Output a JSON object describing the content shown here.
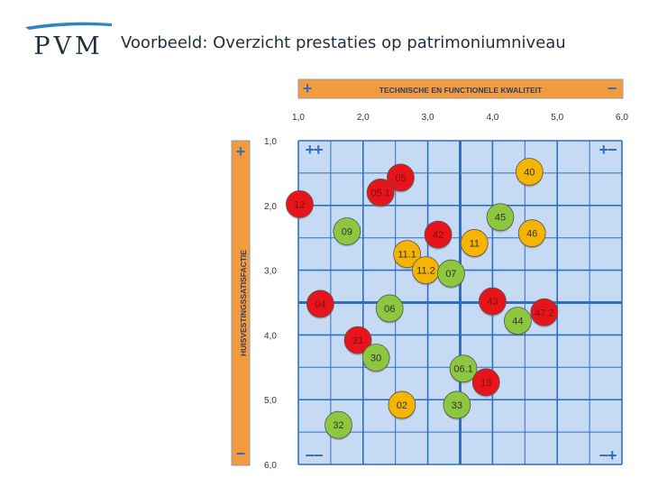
{
  "slide": {
    "title": "Voorbeeld: Overzicht prestaties op patrimoniumniveau",
    "logo_text": "PVM"
  },
  "chart_data": {
    "type": "scatter",
    "x_axis": {
      "title": "TECHNISCHE EN FUNCTIONELE KWALITEIT",
      "range": [
        1.0,
        6.0
      ],
      "ticks": [
        "1,0",
        "2,0",
        "3,0",
        "4,0",
        "5,0",
        "6,0"
      ],
      "ends": [
        "+",
        "−"
      ]
    },
    "y_axis": {
      "title": "HUISVESTINGSSATISFACTIE",
      "range": [
        1.0,
        6.0
      ],
      "ticks": [
        "1,0",
        "2,0",
        "3,0",
        "4,0",
        "5,0",
        "6,0"
      ],
      "ends": [
        "+",
        "−"
      ]
    },
    "quadrant_labels": [
      "++",
      "+−",
      "−−",
      "−+"
    ],
    "colors": {
      "red": "#e8141b",
      "orange": "#f5b400",
      "green": "#8dc63f",
      "plot_bg": "#c6dbf3",
      "grid": "#2f6fc0",
      "band": "#f19a3e"
    },
    "points": [
      {
        "label": "05",
        "x": 2.58,
        "y": 1.57,
        "color": "red"
      },
      {
        "label": "40",
        "x": 4.57,
        "y": 1.48,
        "color": "orange"
      },
      {
        "label": "05.1",
        "x": 2.27,
        "y": 1.8,
        "color": "red"
      },
      {
        "label": "12",
        "x": 1.02,
        "y": 1.98,
        "color": "red"
      },
      {
        "label": "45",
        "x": 4.12,
        "y": 2.18,
        "color": "green"
      },
      {
        "label": "09",
        "x": 1.75,
        "y": 2.4,
        "color": "green"
      },
      {
        "label": "42",
        "x": 3.16,
        "y": 2.45,
        "color": "red"
      },
      {
        "label": "46",
        "x": 4.61,
        "y": 2.43,
        "color": "orange"
      },
      {
        "label": "11",
        "x": 3.72,
        "y": 2.58,
        "color": "orange"
      },
      {
        "label": "11.1",
        "x": 2.68,
        "y": 2.75,
        "color": "orange"
      },
      {
        "label": "11.2",
        "x": 2.97,
        "y": 3.0,
        "color": "orange"
      },
      {
        "label": "07",
        "x": 3.36,
        "y": 3.05,
        "color": "green"
      },
      {
        "label": "04",
        "x": 1.34,
        "y": 3.52,
        "color": "red"
      },
      {
        "label": "06",
        "x": 2.41,
        "y": 3.59,
        "color": "green"
      },
      {
        "label": "43",
        "x": 4.0,
        "y": 3.48,
        "color": "red"
      },
      {
        "label": "44",
        "x": 4.39,
        "y": 3.78,
        "color": "green"
      },
      {
        "label": "47.2",
        "x": 4.8,
        "y": 3.65,
        "color": "red"
      },
      {
        "label": "31",
        "x": 1.92,
        "y": 4.08,
        "color": "red"
      },
      {
        "label": "30",
        "x": 2.2,
        "y": 4.35,
        "color": "green"
      },
      {
        "label": "06.1",
        "x": 3.55,
        "y": 4.52,
        "color": "green"
      },
      {
        "label": "13",
        "x": 3.9,
        "y": 4.73,
        "color": "red"
      },
      {
        "label": "02",
        "x": 2.6,
        "y": 5.08,
        "color": "orange"
      },
      {
        "label": "33",
        "x": 3.45,
        "y": 5.08,
        "color": "green"
      },
      {
        "label": "32",
        "x": 1.62,
        "y": 5.39,
        "color": "green"
      }
    ]
  }
}
